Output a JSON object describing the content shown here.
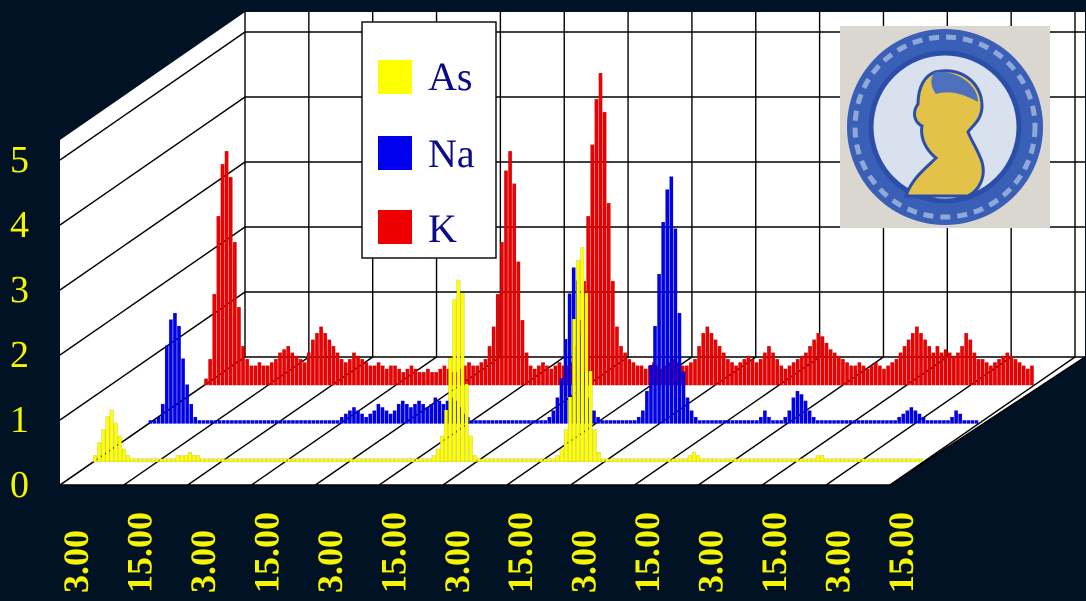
{
  "chart_data": {
    "type": "bar",
    "title": "",
    "xlabel": "",
    "ylabel": "",
    "ylim": [
      0,
      5
    ],
    "yticks": [
      "0",
      "1",
      "2",
      "3",
      "4",
      "5"
    ],
    "xtick_labels": [
      "3.00",
      "15.00",
      "3.00",
      "15.00",
      "3.00",
      "15.00",
      "3.00",
      "15.00",
      "3.00",
      "15.00",
      "3.00",
      "15.00",
      "3.00",
      "15.00"
    ],
    "grid": true,
    "legend_position": "top-center",
    "inset_picture": "decorated-plate",
    "series": [
      {
        "name": "As",
        "color": "#ffff00",
        "values": [
          0.1,
          0.3,
          0.5,
          0.7,
          0.8,
          0.6,
          0.4,
          0.2,
          0.1,
          0.05,
          0.05,
          0.05,
          0.05,
          0.05,
          0.05,
          0.05,
          0.05,
          0.05,
          0.05,
          0.05,
          0.1,
          0.1,
          0.1,
          0.15,
          0.1,
          0.1,
          0.05,
          0.05,
          0.05,
          0.05,
          0.05,
          0.05,
          0.05,
          0.05,
          0.05,
          0.05,
          0.05,
          0.05,
          0.05,
          0.05,
          0.05,
          0.05,
          0.05,
          0.05,
          0.05,
          0.05,
          0.05,
          0.05,
          0.05,
          0.05,
          0.05,
          0.05,
          0.05,
          0.05,
          0.05,
          0.05,
          0.05,
          0.05,
          0.05,
          0.05,
          0.05,
          0.05,
          0.05,
          0.05,
          0.05,
          0.05,
          0.05,
          0.05,
          0.05,
          0.05,
          0.05,
          0.05,
          0.05,
          0.05,
          0.05,
          0.05,
          0.05,
          0.05,
          0.05,
          0.05,
          0.05,
          0.05,
          0.1,
          0.2,
          0.4,
          0.8,
          1.6,
          2.5,
          2.8,
          2.6,
          1.2,
          0.4,
          0.1,
          0.05,
          0.05,
          0.05,
          0.05,
          0.05,
          0.05,
          0.05,
          0.05,
          0.05,
          0.05,
          0.05,
          0.05,
          0.05,
          0.05,
          0.05,
          0.05,
          0.05,
          0.05,
          0.05,
          0.1,
          0.2,
          0.5,
          1.0,
          2.2,
          3.1,
          3.3,
          2.6,
          1.4,
          0.5,
          0.15,
          0.05,
          0.05,
          0.05,
          0.05,
          0.05,
          0.05,
          0.05,
          0.05,
          0.05,
          0.05,
          0.05,
          0.05,
          0.05,
          0.05,
          0.05,
          0.05,
          0.05,
          0.05,
          0.05,
          0.05,
          0.05,
          0.1,
          0.15,
          0.1,
          0.05,
          0.05,
          0.05,
          0.05,
          0.05,
          0.05,
          0.05,
          0.05,
          0.05,
          0.05,
          0.05,
          0.05,
          0.05,
          0.05,
          0.05,
          0.05,
          0.05,
          0.05,
          0.05,
          0.05,
          0.05,
          0.05,
          0.05,
          0.05,
          0.05,
          0.05,
          0.05,
          0.05,
          0.1,
          0.1,
          0.05,
          0.05,
          0.05,
          0.05,
          0.05,
          0.05,
          0.05,
          0.05,
          0.05,
          0.05,
          0.05,
          0.05,
          0.05,
          0.05,
          0.05,
          0.05,
          0.05,
          0.05,
          0.05,
          0.05,
          0.05,
          0.05,
          0.05,
          0.05
        ]
      },
      {
        "name": "Na",
        "color": "#0000ee",
        "values": [
          0.05,
          0.05,
          0.1,
          0.3,
          1.2,
          1.6,
          1.7,
          1.5,
          1.0,
          0.6,
          0.3,
          0.1,
          0.05,
          0.05,
          0.05,
          0.05,
          0.05,
          0.05,
          0.05,
          0.05,
          0.05,
          0.05,
          0.05,
          0.05,
          0.05,
          0.05,
          0.05,
          0.05,
          0.05,
          0.05,
          0.05,
          0.05,
          0.05,
          0.05,
          0.05,
          0.05,
          0.05,
          0.05,
          0.05,
          0.05,
          0.05,
          0.05,
          0.05,
          0.05,
          0.05,
          0.05,
          0.05,
          0.1,
          0.15,
          0.2,
          0.25,
          0.2,
          0.15,
          0.1,
          0.15,
          0.2,
          0.3,
          0.25,
          0.2,
          0.15,
          0.2,
          0.3,
          0.35,
          0.3,
          0.25,
          0.3,
          0.35,
          0.3,
          0.25,
          0.3,
          0.4,
          0.35,
          0.3,
          0.35,
          0.4,
          0.35,
          0.25,
          0.15,
          0.1,
          0.05,
          0.05,
          0.05,
          0.05,
          0.05,
          0.05,
          0.05,
          0.05,
          0.05,
          0.05,
          0.05,
          0.05,
          0.05,
          0.05,
          0.05,
          0.05,
          0.05,
          0.05,
          0.05,
          0.1,
          0.2,
          0.4,
          0.7,
          1.3,
          2.0,
          2.4,
          2.2,
          1.4,
          0.8,
          0.4,
          0.2,
          0.1,
          0.05,
          0.05,
          0.05,
          0.05,
          0.05,
          0.05,
          0.05,
          0.05,
          0.05,
          0.1,
          0.2,
          0.5,
          0.9,
          1.5,
          2.3,
          3.1,
          3.6,
          3.8,
          3.0,
          1.7,
          0.8,
          0.4,
          0.2,
          0.1,
          0.05,
          0.05,
          0.05,
          0.05,
          0.05,
          0.05,
          0.05,
          0.05,
          0.05,
          0.05,
          0.05,
          0.05,
          0.05,
          0.05,
          0.05,
          0.1,
          0.2,
          0.1,
          0.05,
          0.05,
          0.05,
          0.1,
          0.2,
          0.4,
          0.5,
          0.45,
          0.35,
          0.2,
          0.1,
          0.05,
          0.05,
          0.05,
          0.05,
          0.05,
          0.05,
          0.05,
          0.05,
          0.05,
          0.05,
          0.05,
          0.05,
          0.05,
          0.05,
          0.05,
          0.05,
          0.05,
          0.05,
          0.05,
          0.05,
          0.1,
          0.15,
          0.2,
          0.25,
          0.2,
          0.15,
          0.1,
          0.05,
          0.05,
          0.05,
          0.05,
          0.05,
          0.05,
          0.1,
          0.2,
          0.15,
          0.05,
          0.05,
          0.05,
          0.05
        ]
      },
      {
        "name": "K",
        "color": "#ee0000",
        "values": [
          0.1,
          0.4,
          1.4,
          2.6,
          3.4,
          3.6,
          3.2,
          2.2,
          1.2,
          0.6,
          0.4,
          0.3,
          0.3,
          0.35,
          0.3,
          0.3,
          0.35,
          0.4,
          0.5,
          0.55,
          0.6,
          0.5,
          0.45,
          0.4,
          0.35,
          0.5,
          0.7,
          0.8,
          0.9,
          0.8,
          0.7,
          0.6,
          0.5,
          0.4,
          0.35,
          0.4,
          0.5,
          0.45,
          0.4,
          0.35,
          0.3,
          0.3,
          0.35,
          0.3,
          0.25,
          0.3,
          0.3,
          0.25,
          0.2,
          0.25,
          0.3,
          0.25,
          0.2,
          0.2,
          0.25,
          0.2,
          0.2,
          0.25,
          0.3,
          0.25,
          0.2,
          0.2,
          0.25,
          0.3,
          0.35,
          0.3,
          0.3,
          0.35,
          0.4,
          0.6,
          0.9,
          1.4,
          2.2,
          3.3,
          3.6,
          3.1,
          1.9,
          1.0,
          0.5,
          0.3,
          0.25,
          0.3,
          0.35,
          0.3,
          0.25,
          0.3,
          0.35,
          0.3,
          0.3,
          0.35,
          0.6,
          1.0,
          1.6,
          2.6,
          3.7,
          4.4,
          4.8,
          4.2,
          2.8,
          1.6,
          0.9,
          0.6,
          0.5,
          0.4,
          0.35,
          0.3,
          0.3,
          0.25,
          0.3,
          0.35,
          0.3,
          0.25,
          0.3,
          0.35,
          0.4,
          0.35,
          0.3,
          0.3,
          0.35,
          0.4,
          0.6,
          0.8,
          0.9,
          0.8,
          0.7,
          0.6,
          0.5,
          0.4,
          0.35,
          0.3,
          0.35,
          0.4,
          0.45,
          0.4,
          0.35,
          0.4,
          0.5,
          0.6,
          0.5,
          0.4,
          0.3,
          0.25,
          0.3,
          0.35,
          0.4,
          0.45,
          0.5,
          0.6,
          0.7,
          0.8,
          0.75,
          0.65,
          0.55,
          0.5,
          0.45,
          0.4,
          0.35,
          0.3,
          0.3,
          0.35,
          0.3,
          0.25,
          0.3,
          0.35,
          0.3,
          0.25,
          0.3,
          0.35,
          0.4,
          0.5,
          0.6,
          0.7,
          0.8,
          0.9,
          0.8,
          0.7,
          0.6,
          0.5,
          0.6,
          0.5,
          0.55,
          0.5,
          0.45,
          0.5,
          0.6,
          0.8,
          0.7,
          0.5,
          0.4,
          0.4,
          0.35,
          0.3,
          0.35,
          0.4,
          0.45,
          0.5,
          0.45,
          0.4,
          0.35,
          0.3,
          0.25,
          0.3
        ]
      }
    ]
  }
}
